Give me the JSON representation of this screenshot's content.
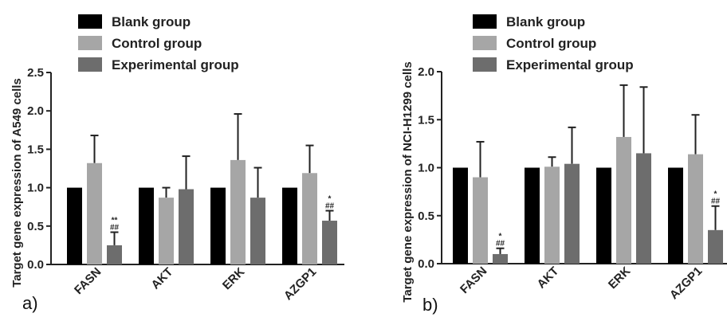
{
  "chart_data": [
    {
      "type": "bar",
      "panel_label": "a)",
      "ylabel": "Target gene expression of A549 cells",
      "ylim": [
        0,
        2.5
      ],
      "yticks": [
        "0.0",
        "0.5",
        "1.0",
        "1.5",
        "2.0",
        "2.5"
      ],
      "categories": [
        "FASN",
        "AKT",
        "ERK",
        "AZGP1"
      ],
      "series": [
        {
          "name": "Blank group",
          "color": "#000000",
          "values": [
            1.0,
            1.0,
            1.0,
            1.0
          ],
          "errors": [
            0,
            0,
            0,
            0
          ]
        },
        {
          "name": "Control group",
          "color": "#a6a6a6",
          "values": [
            1.32,
            0.87,
            1.36,
            1.19
          ],
          "errors": [
            0.36,
            0.13,
            0.6,
            0.36
          ]
        },
        {
          "name": "Experimental group",
          "color": "#6d6d6d",
          "values": [
            0.25,
            0.98,
            0.87,
            0.57
          ],
          "errors": [
            0.17,
            0.43,
            0.39,
            0.13
          ]
        }
      ],
      "annotations": [
        {
          "category": "FASN",
          "series": "Experimental group",
          "lines": [
            "**",
            "##"
          ]
        },
        {
          "category": "AZGP1",
          "series": "Experimental group",
          "lines": [
            "*",
            "##"
          ]
        }
      ],
      "legend_position": "top"
    },
    {
      "type": "bar",
      "panel_label": "b)",
      "ylabel": "Target gene expression of NCI-H1299 cells",
      "ylim": [
        0,
        2.0
      ],
      "yticks": [
        "0.0",
        "0.5",
        "1.0",
        "1.5",
        "2.0"
      ],
      "categories": [
        "FASN",
        "AKT",
        "ERK",
        "AZGP1"
      ],
      "series": [
        {
          "name": "Blank group",
          "color": "#000000",
          "values": [
            1.0,
            1.0,
            1.0,
            1.0
          ],
          "errors": [
            0,
            0,
            0,
            0
          ]
        },
        {
          "name": "Control group",
          "color": "#a6a6a6",
          "values": [
            0.9,
            1.01,
            1.32,
            1.14
          ],
          "errors": [
            0.37,
            0.1,
            0.54,
            0.41
          ]
        },
        {
          "name": "Experimental group",
          "color": "#6d6d6d",
          "values": [
            0.1,
            1.04,
            1.15,
            0.35
          ],
          "errors": [
            0.06,
            0.38,
            0.69,
            0.25
          ]
        }
      ],
      "annotations": [
        {
          "category": "FASN",
          "series": "Experimental group",
          "lines": [
            "*",
            "##"
          ]
        },
        {
          "category": "AZGP1",
          "series": "Experimental group",
          "lines": [
            "*",
            "##"
          ]
        }
      ],
      "legend_position": "top"
    }
  ]
}
